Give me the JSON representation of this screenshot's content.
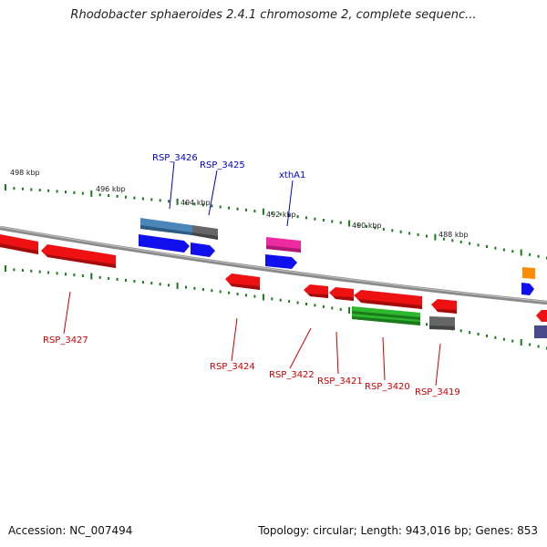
{
  "title": "Rhodobacter sphaeroides 2.4.1 chromosome 2, complete sequenc...",
  "accession": "Accession: NC_007494",
  "stats": "Topology: circular; Length: 943,016 bp; Genes: 853",
  "ruler": {
    "labels": [
      "498 kbp",
      "496 kbp",
      "494 kbp",
      "492 kbp",
      "490 kbp",
      "488 kbp"
    ]
  },
  "genes": {
    "forward": [
      {
        "label": "RSP_3426",
        "color": "#4a86b8"
      },
      {
        "label": "RSP_3425",
        "color": "#666666"
      },
      {
        "label": "",
        "color": "#1010ee"
      },
      {
        "label": "",
        "color": "#1010ee"
      },
      {
        "label": "xthA1",
        "color": "#ee2aa0"
      },
      {
        "label": "",
        "color": "#1010ee"
      },
      {
        "label": "",
        "color": "#ff8c00"
      },
      {
        "label": "",
        "color": "#1010ee"
      }
    ],
    "reverse": [
      {
        "label": "",
        "color": "#ee1111"
      },
      {
        "label": "RSP_3427",
        "color": "#ee1111"
      },
      {
        "label": "RSP_3424",
        "color": "#ee1111"
      },
      {
        "label": "RSP_3422",
        "color": "#ee1111"
      },
      {
        "label": "RSP_3421",
        "color": "#ee1111"
      },
      {
        "label": "RSP_3420",
        "color": "#ee1111"
      },
      {
        "label": "RSP_3420",
        "color": "#2db82d"
      },
      {
        "label": "RSP_3419",
        "color": "#ee1111"
      },
      {
        "label": "RSP_3419",
        "color": "#666666"
      },
      {
        "label": "",
        "color": "#ee1111"
      },
      {
        "label": "",
        "color": "#4a4a8a"
      }
    ]
  },
  "colors": {
    "forward_label": "#0000cc",
    "reverse_label": "#cc0000",
    "backbone": "#8a8a8a",
    "tick": "#1a7a1a"
  }
}
